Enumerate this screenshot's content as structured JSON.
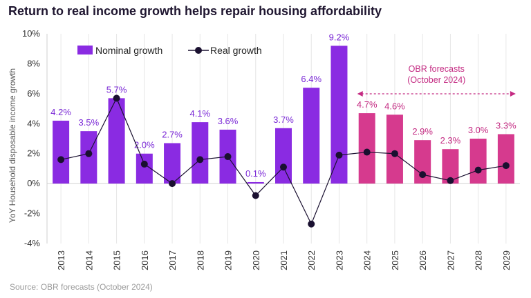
{
  "title": "Return to real income growth helps repair housing affordability",
  "source": "Source: OBR forecasts (October 2024)",
  "chart_data": {
    "type": "bar",
    "categories": [
      "2013",
      "2014",
      "2015",
      "2016",
      "2017",
      "2018",
      "2019",
      "2020",
      "2021",
      "2022",
      "2023",
      "2024",
      "2025",
      "2026",
      "2027",
      "2028",
      "2029"
    ],
    "series": [
      {
        "name": "Nominal growth",
        "type": "bar",
        "values": [
          4.2,
          3.5,
          5.7,
          2.0,
          2.7,
          4.1,
          3.6,
          0.1,
          3.7,
          6.4,
          9.2,
          4.7,
          4.6,
          2.9,
          2.3,
          3.0,
          3.3
        ],
        "data_labels": [
          "4.2%",
          "3.5%",
          "5.7%",
          "2.0%",
          "2.7%",
          "4.1%",
          "3.6%",
          "0.1%",
          "3.7%",
          "6.4%",
          "9.2%",
          "4.7%",
          "4.6%",
          "2.9%",
          "2.3%",
          "3.0%",
          "3.3%"
        ]
      },
      {
        "name": "Real growth",
        "type": "line",
        "values": [
          1.6,
          2.0,
          5.7,
          1.3,
          0.0,
          1.6,
          1.8,
          -0.8,
          1.1,
          -2.7,
          1.9,
          2.1,
          2.0,
          0.6,
          0.2,
          0.9,
          1.2
        ]
      }
    ],
    "ylabel": "YoY Household disposable income growth",
    "ylim": [
      -4,
      10
    ],
    "yticks": [
      -4,
      -2,
      0,
      2,
      4,
      6,
      8,
      10
    ],
    "ytick_labels": [
      "-4%",
      "-2%",
      "0%",
      "2%",
      "4%",
      "6%",
      "8%",
      "10%"
    ],
    "grid": "vertical",
    "legend": "top-left",
    "forecast_annotation": "OBR forecasts\n(October 2024)",
    "forecast_from": "2024",
    "forecast_to": "2029",
    "colors": {
      "historic_bar": "#8a2be2",
      "forecast_bar": "#d63a8e",
      "line": "#1a1030",
      "historic_label": "#7a28d6",
      "forecast_label": "#c42a82",
      "annotation": "#c42a82",
      "axis_text": "#333333",
      "grid": "#e6e6e6"
    }
  }
}
